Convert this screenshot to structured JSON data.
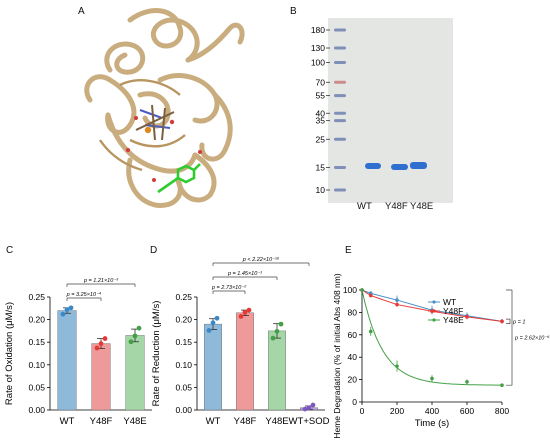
{
  "panels": {
    "A": {
      "letter": "A"
    },
    "B": {
      "letter": "B",
      "ladder_labels": [
        "180",
        "130",
        "100",
        "70",
        "55",
        "40",
        "35",
        "25",
        "15",
        "10"
      ],
      "ladder_kda": [
        180,
        130,
        100,
        70,
        55,
        40,
        35,
        25,
        15,
        10
      ],
      "lane_labels": [
        "WT",
        "Y48F",
        "Y48E"
      ]
    },
    "C": {
      "letter": "C"
    },
    "D": {
      "letter": "D"
    },
    "E": {
      "letter": "E"
    }
  },
  "colors": {
    "wt": "#8fb9d9",
    "y48f": "#ef9a9a",
    "y48e": "#a5d6a7",
    "wt_sod": "#b39ddb",
    "wt_line": "#4a90c8",
    "y48f_line": "#e53935",
    "y48e_line": "#43a047"
  },
  "chart_data": [
    {
      "type": "bar",
      "panel": "C",
      "categories": [
        "WT",
        "Y48F",
        "Y48E"
      ],
      "values": [
        0.22,
        0.147,
        0.165
      ],
      "errors": [
        0.006,
        0.011,
        0.014
      ],
      "points": [
        [
          0.212,
          0.222,
          0.226
        ],
        [
          0.137,
          0.147,
          0.158
        ],
        [
          0.151,
          0.164,
          0.181
        ]
      ],
      "ylabel": "Rate of Oxidation (μM/s)",
      "ylim": [
        0,
        0.25
      ],
      "yticks": [
        "0.00",
        "0.05",
        "0.10",
        "0.15",
        "0.20",
        "0.25"
      ],
      "annotations": [
        {
          "text": "p = 1.21×10⁻³",
          "from": 0,
          "to": 2
        },
        {
          "text": "p = 3.25×10⁻⁴",
          "from": 0,
          "to": 1
        }
      ]
    },
    {
      "type": "bar",
      "panel": "D",
      "categories": [
        "WT",
        "Y48F",
        "Y48E",
        "WT+SOD"
      ],
      "values": [
        0.19,
        0.215,
        0.175,
        0.005
      ],
      "errors": [
        0.012,
        0.006,
        0.016,
        0.004
      ],
      "points": [
        [
          0.176,
          0.193,
          0.203
        ],
        [
          0.207,
          0.216,
          0.221
        ],
        [
          0.159,
          0.174,
          0.19
        ],
        [
          0.002,
          0.005,
          0.011
        ]
      ],
      "ylabel": "Rate of Reduction (μM/s)",
      "ylim": [
        0,
        0.25
      ],
      "yticks": [
        "0.00",
        "0.05",
        "0.10",
        "0.15",
        "0.20",
        "0.25"
      ],
      "annotations": [
        {
          "text": "p < 2.22×10⁻¹⁶",
          "from": 0,
          "to": 3
        },
        {
          "text": "p = 1.45×10⁻¹",
          "from": 0,
          "to": 2
        },
        {
          "text": "p = 2.73×10⁻²",
          "from": 0,
          "to": 1
        }
      ]
    },
    {
      "type": "line",
      "panel": "E",
      "xlabel": "Time (s)",
      "ylabel": "Heme Degradation (% of initial Abs 408 nm)",
      "xlim": [
        0,
        800
      ],
      "ylim": [
        0,
        100
      ],
      "xticks": [
        "0",
        "200",
        "400",
        "600",
        "800"
      ],
      "yticks": [
        "0",
        "20",
        "40",
        "60",
        "80",
        "100"
      ],
      "series": [
        {
          "name": "WT",
          "x": [
            0,
            50,
            200,
            400,
            600,
            800
          ],
          "y": [
            100,
            97,
            91,
            82,
            77,
            72
          ],
          "err": [
            1,
            2,
            4,
            4,
            3,
            2
          ]
        },
        {
          "name": "Y48F",
          "x": [
            0,
            50,
            200,
            400,
            600,
            800
          ],
          "y": [
            100,
            95,
            87,
            81,
            76,
            72
          ],
          "err": [
            1,
            1,
            2,
            2,
            2,
            2
          ]
        },
        {
          "name": "Y48E",
          "x": [
            0,
            50,
            200,
            400,
            600,
            800
          ],
          "y": [
            100,
            63,
            32,
            21,
            18,
            15
          ],
          "err": [
            1,
            4,
            5,
            3,
            2,
            1
          ]
        }
      ],
      "annotations": [
        {
          "text": "p = 1"
        },
        {
          "text": "p = 2.62×10⁻⁶"
        }
      ]
    }
  ]
}
